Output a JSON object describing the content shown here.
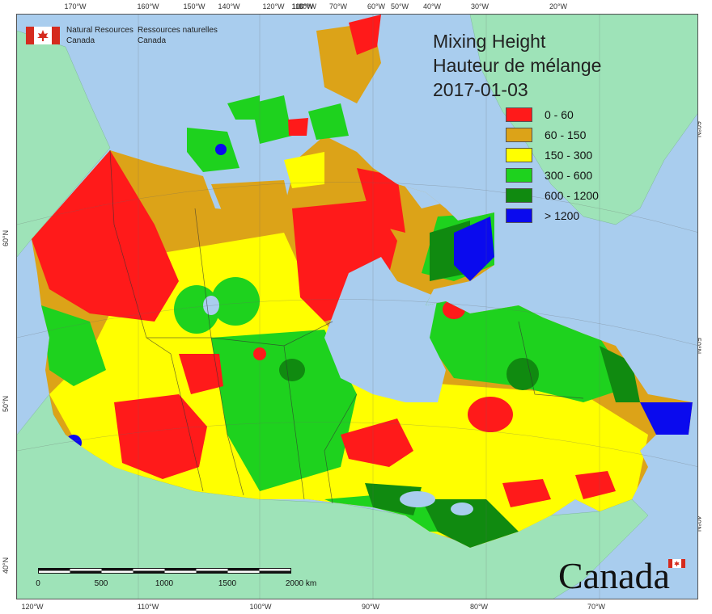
{
  "title": {
    "line1": "Mixing Height",
    "line2": "Hauteur de mélange",
    "date": "2017-01-03"
  },
  "legend": [
    {
      "label": "0 - 60",
      "color": "#ff1a1a"
    },
    {
      "label": "60 - 150",
      "color": "#dca318"
    },
    {
      "label": "150 - 300",
      "color": "#ffff00"
    },
    {
      "label": "300 - 600",
      "color": "#1ed21e"
    },
    {
      "label": "600 - 1200",
      "color": "#108a10"
    },
    {
      "label": "> 1200",
      "color": "#0a0aee"
    }
  ],
  "agency": {
    "name_en_1": "Natural Resources",
    "name_en_2": "Canada",
    "name_fr_1": "Ressources naturelles",
    "name_fr_2": "Canada"
  },
  "axes": {
    "top": [
      "170°W",
      "160°W",
      "150°W",
      "140°W",
      "120°W",
      "110°W",
      "100°W",
      "80°W",
      "70°W",
      "60°W",
      "50°W",
      "40°W",
      "30°W",
      "20°W"
    ],
    "bottom": [
      "120°W",
      "110°W",
      "100°W",
      "90°W",
      "80°W",
      "70°W"
    ],
    "left": [
      "60°N",
      "50°N",
      "40°N"
    ],
    "right": [
      "60°N",
      "50°N",
      "40°N"
    ]
  },
  "scale": {
    "labels": [
      "0",
      "500",
      "1000",
      "1500",
      "2000 km"
    ]
  },
  "wordmark": "Canada",
  "colors": {
    "water": "#a9cdee",
    "land_outside": "#9ee3b8"
  }
}
